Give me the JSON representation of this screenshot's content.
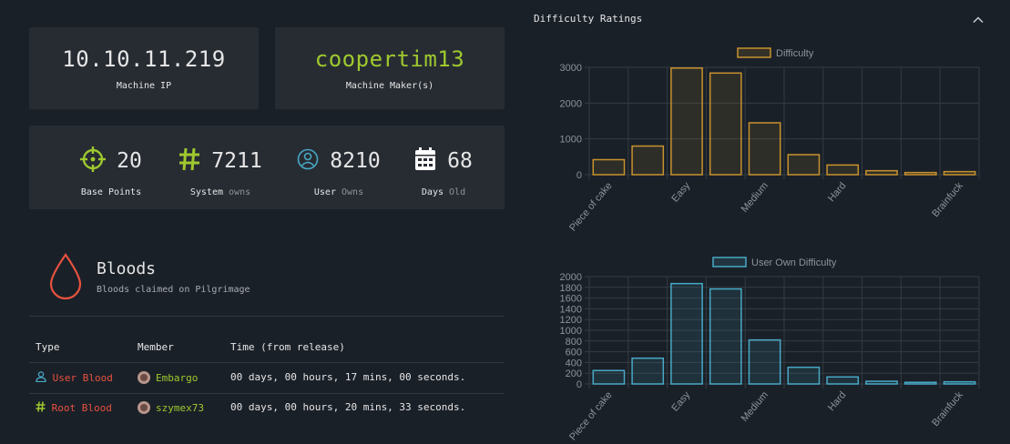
{
  "machine": {
    "ip": "10.10.11.219",
    "ip_label": "Machine IP",
    "maker": "coopertim13",
    "maker_label": "Machine Maker(s)"
  },
  "stats": {
    "base_points": {
      "value": "20",
      "label": "Base Points"
    },
    "system_owns": {
      "value": "7211",
      "label": "System",
      "suffix": "owns"
    },
    "user_owns": {
      "value": "8210",
      "label": "User",
      "suffix": "Owns"
    },
    "days_old": {
      "value": "68",
      "label": "Days",
      "suffix": "Old"
    }
  },
  "bloods": {
    "title": "Bloods",
    "subtitle": "Bloods claimed on Pilgrimage",
    "headers": {
      "type": "Type",
      "member": "Member",
      "time": "Time (from release)"
    },
    "rows": [
      {
        "type": "User Blood",
        "member": "Embargo",
        "time": "00 days, 00 hours, 17 mins, 00 seconds."
      },
      {
        "type": "Root Blood",
        "member": "szymex73",
        "time": "00 days, 00 hours, 20 mins, 33 seconds."
      }
    ]
  },
  "difficulty": {
    "title": "Difficulty Ratings",
    "collapse_icon": "chevron-up-icon"
  },
  "chart_data": [
    {
      "type": "bar",
      "series": [
        {
          "name": "Difficulty",
          "values": [
            420,
            800,
            2980,
            2840,
            1450,
            560,
            270,
            110,
            60,
            85
          ]
        }
      ],
      "tick_labels": {
        "0": "Piece of cake",
        "2": "Easy",
        "4": "Medium",
        "6": "Hard",
        "9": "Brainfuck"
      },
      "ylim": [
        0,
        3000
      ],
      "yticks": [
        0,
        1000,
        2000,
        3000
      ],
      "color": "#c8922e",
      "legend": "top"
    },
    {
      "type": "bar",
      "series": [
        {
          "name": "User Own Difficulty",
          "values": [
            250,
            480,
            1870,
            1770,
            820,
            310,
            130,
            50,
            30,
            40
          ]
        }
      ],
      "tick_labels": {
        "0": "Piece of cake",
        "2": "Easy",
        "4": "Medium",
        "6": "Hard",
        "9": "Brainfuck"
      },
      "ylim": [
        0,
        2000
      ],
      "yticks": [
        0,
        200,
        400,
        600,
        800,
        1000,
        1200,
        1400,
        1600,
        1800,
        2000
      ],
      "color": "#48a9c5",
      "legend": "top"
    }
  ],
  "colors": {
    "accent_green": "#9fc92e",
    "blood_red": "#e8523f",
    "user_blue": "#48a9c5",
    "bar_orange": "#c8922e"
  }
}
